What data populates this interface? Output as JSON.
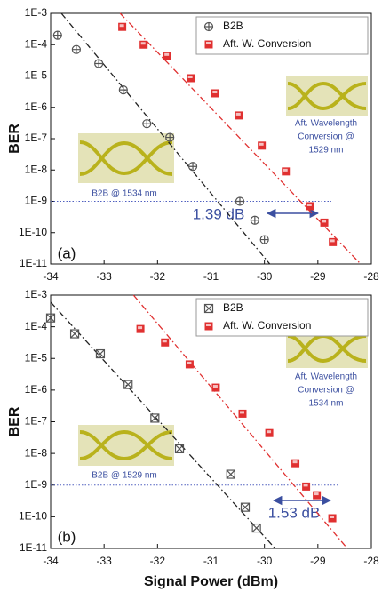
{
  "chart_data": [
    {
      "type": "scatter",
      "ylabel": "BER",
      "yscale": "log",
      "xlim": [
        -34,
        -28
      ],
      "xticks": [
        -34,
        -33,
        -32,
        -31,
        -30,
        -29,
        -28
      ],
      "ylim": [
        1e-11,
        0.001
      ],
      "yticks": [
        {
          "value": 0.001,
          "label": "1E-3"
        },
        {
          "value": 0.0001,
          "label": "1E-4"
        },
        {
          "value": 1e-05,
          "label": "1E-5"
        },
        {
          "value": 1e-06,
          "label": "1E-6"
        },
        {
          "value": 1e-07,
          "label": "1E-7"
        },
        {
          "value": 1e-08,
          "label": "1E-8"
        },
        {
          "value": 1e-09,
          "label": "1E-9"
        },
        {
          "value": 1e-10,
          "label": "1E-10"
        },
        {
          "value": 1e-11,
          "label": "1E-11"
        }
      ],
      "legend": "upper right",
      "series": [
        {
          "name": "B2B",
          "marker": "circle-plus",
          "color": "#555555",
          "x": [
            -33.87,
            -33.52,
            -33.1,
            -32.64,
            -32.2,
            -31.77,
            -31.34,
            -30.46,
            -30.18,
            -30.0
          ],
          "values": [
            0.0002,
            7e-05,
            2.5e-05,
            3.6e-06,
            3e-07,
            1.1e-07,
            1.3e-08,
            1e-09,
            2.5e-10,
            6e-11
          ]
        },
        {
          "name": "Aft. W. Conversion",
          "marker": "square",
          "color": "#e03030",
          "x": [
            -32.66,
            -32.26,
            -31.82,
            -31.38,
            -30.92,
            -30.48,
            -30.05,
            -29.6,
            -29.15,
            -28.88,
            -28.72
          ],
          "values": [
            0.00037,
            0.0001,
            4.4e-05,
            8.5e-06,
            2.8e-06,
            5.5e-07,
            6e-08,
            9e-09,
            7e-10,
            2.1e-10,
            5e-11
          ]
        }
      ],
      "fits": [
        {
          "color": "#222222",
          "x": [
            -33.8,
            -29.9
          ],
          "values": [
            0.001,
            1e-11
          ]
        },
        {
          "color": "#e03030",
          "x": [
            -32.7,
            -28.2
          ],
          "values": [
            0.001,
            1e-11
          ]
        }
      ],
      "reference_line": {
        "y": 1e-09,
        "x": [
          -34,
          -28.75
        ],
        "color": "#5060c0"
      },
      "annotations": [
        "(a)",
        "1.39 dB",
        "B2B @ 1534 nm",
        "Aft. Wavelength",
        "Conversion @",
        "1529 nm"
      ]
    },
    {
      "type": "scatter",
      "ylabel": "BER",
      "xlabel": "Signal Power (dBm)",
      "yscale": "log",
      "xlim": [
        -34,
        -28
      ],
      "xticks": [
        -34,
        -33,
        -32,
        -31,
        -30,
        -29,
        -28
      ],
      "ylim": [
        1e-11,
        0.001
      ],
      "yticks": [
        {
          "value": 0.001,
          "label": "1E-3"
        },
        {
          "value": 0.0001,
          "label": "1E-4"
        },
        {
          "value": 1e-05,
          "label": "1E-5"
        },
        {
          "value": 1e-06,
          "label": "1E-6"
        },
        {
          "value": 1e-07,
          "label": "1E-7"
        },
        {
          "value": 1e-08,
          "label": "1E-8"
        },
        {
          "value": 1e-09,
          "label": "1E-9"
        },
        {
          "value": 1e-10,
          "label": "1E-10"
        },
        {
          "value": 1e-11,
          "label": "1E-11"
        }
      ],
      "legend": "upper right",
      "series": [
        {
          "name": "B2B",
          "marker": "square-x",
          "color": "#555555",
          "x": [
            -34.0,
            -33.55,
            -33.07,
            -32.55,
            -32.05,
            -31.59,
            -30.63,
            -30.36,
            -30.15
          ],
          "values": [
            0.00019,
            6e-05,
            1.4e-05,
            1.5e-06,
            1.3e-07,
            1.4e-08,
            2.2e-09,
            2e-10,
            4.4e-11
          ]
        },
        {
          "name": "Aft. W. Conversion",
          "marker": "square",
          "color": "#e03030",
          "x": [
            -32.32,
            -31.86,
            -31.4,
            -30.91,
            -30.41,
            -29.91,
            -29.42,
            -29.22,
            -29.02,
            -28.73
          ],
          "values": [
            8.5e-05,
            3.2e-05,
            6.5e-06,
            1.2e-06,
            1.8e-07,
            4.4e-08,
            4.9e-09,
            9e-10,
            4.8e-10,
            9e-11
          ]
        }
      ],
      "fits": [
        {
          "color": "#222222",
          "x": [
            -34.0,
            -29.8
          ],
          "values": [
            0.0006,
            1e-11
          ]
        },
        {
          "color": "#e03030",
          "x": [
            -32.45,
            -28.45
          ],
          "values": [
            0.001,
            1e-11
          ]
        }
      ],
      "reference_line": {
        "y": 1e-09,
        "x": [
          -34,
          -28.6
        ],
        "color": "#5060c0"
      },
      "annotations": [
        "(b)",
        "1.53 dB",
        "B2B @ 1529 nm",
        "Aft. Wavelength",
        "Conversion @",
        "1534 nm"
      ]
    }
  ]
}
